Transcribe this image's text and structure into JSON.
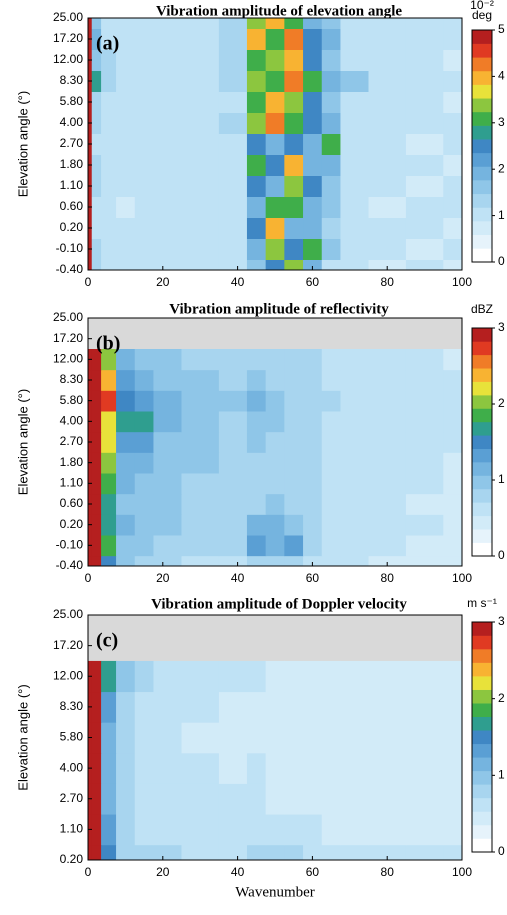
{
  "chart_data": [
    {
      "type": "heatmap",
      "title": "Vibration  amplitude of elevation angle",
      "panel_label": "(a)",
      "ylabel": "Elevation angle (°)",
      "categories": [
        "-0.40",
        "-0.10",
        "0.20",
        "0.60",
        "1.10",
        "1.80",
        "2.70",
        "4.00",
        "5.80",
        "8.30",
        "12.00",
        "17.20",
        "25.00"
      ],
      "x": [
        0,
        2,
        5,
        10,
        15,
        20,
        30,
        40,
        45,
        50,
        55,
        60,
        65,
        70,
        80,
        90,
        100
      ],
      "xlim": [
        0,
        100
      ],
      "xticks": [
        0,
        20,
        40,
        60,
        80,
        100
      ],
      "zlim": [
        0,
        5
      ],
      "zticks": [
        0,
        1,
        2,
        3,
        4,
        5
      ],
      "colorbar_label": [
        "10⁻²",
        "deg"
      ],
      "colorscale": [
        "#ffffff",
        "#e6f3fb",
        "#d2ebf8",
        "#bfe2f5",
        "#a8d5ef",
        "#8fc6e8",
        "#75b4df",
        "#5a9fd4",
        "#3f87c4",
        "#2f9e8f",
        "#3fae4a",
        "#8cc63f",
        "#e8e23a",
        "#f8b332",
        "#f07c27",
        "#e03a22",
        "#b51f1f"
      ],
      "values": [
        [
          5,
          1.2,
          1,
          0.8,
          0.9,
          0.8,
          0.9,
          0.9,
          1.5,
          2.5,
          3.5,
          2,
          1,
          0.8,
          0.7,
          0.8,
          0.7
        ],
        [
          5,
          1.1,
          1,
          0.9,
          0.8,
          0.9,
          0.8,
          1,
          2,
          3.5,
          2.5,
          3,
          1.5,
          0.9,
          0.8,
          0.7,
          0.8
        ],
        [
          5,
          1,
          0.9,
          0.8,
          0.9,
          0.8,
          0.9,
          0.9,
          2.5,
          4,
          2,
          1.8,
          1.2,
          0.8,
          0.8,
          0.8,
          0.7
        ],
        [
          5,
          1,
          0.8,
          0.7,
          0.8,
          0.9,
          0.8,
          0.9,
          2,
          3,
          3,
          2,
          1.5,
          0.8,
          0.7,
          0.8,
          0.8
        ],
        [
          5,
          1.2,
          1,
          0.9,
          0.8,
          0.8,
          0.8,
          1,
          2.5,
          2,
          3.5,
          2.5,
          1.5,
          0.9,
          0.8,
          0.7,
          0.8
        ],
        [
          5,
          1.1,
          1,
          0.8,
          0.9,
          1,
          0.9,
          1,
          3,
          2.5,
          4,
          2,
          2,
          1,
          0.8,
          0.8,
          0.7
        ],
        [
          5,
          1,
          0.9,
          0.8,
          0.9,
          0.8,
          0.9,
          1,
          2.5,
          2,
          2.5,
          2,
          3,
          1,
          0.8,
          0.7,
          0.8
        ],
        [
          5,
          1.2,
          1,
          0.9,
          0.8,
          0.9,
          0.8,
          1.1,
          3.5,
          4.5,
          3,
          2.5,
          2,
          1,
          0.9,
          0.8,
          0.8
        ],
        [
          5,
          1.3,
          1,
          0.9,
          0.9,
          0.8,
          0.9,
          1,
          3,
          4,
          3.5,
          2.5,
          1.5,
          1,
          0.8,
          0.8,
          0.7
        ],
        [
          5,
          2.8,
          1.2,
          1,
          0.9,
          1,
          0.9,
          1.2,
          3.5,
          3,
          4.5,
          3,
          2,
          1.5,
          0.9,
          0.8,
          0.8
        ],
        [
          5,
          1.5,
          1.1,
          1,
          0.9,
          0.9,
          1,
          1.1,
          3,
          3.5,
          4,
          2.5,
          1.5,
          1,
          0.9,
          0.8,
          0.7
        ],
        [
          5,
          1.8,
          1,
          0.9,
          1,
          0.9,
          1,
          1.2,
          4,
          3,
          4.5,
          2.5,
          1.8,
          1,
          0.8,
          0.8,
          0.8
        ],
        [
          5,
          1.5,
          1,
          1,
          0.9,
          1,
          0.9,
          1.1,
          3.5,
          4,
          3,
          2,
          1.5,
          1,
          0.9,
          0.8,
          0.8
        ]
      ]
    },
    {
      "type": "heatmap",
      "title": "Vibration  amplitude of reflectivity",
      "panel_label": "(b)",
      "ylabel": "Elevation angle (°)",
      "categories": [
        "-0.40",
        "-0.10",
        "0.20",
        "0.60",
        "1.10",
        "1.80",
        "2.70",
        "4.00",
        "5.80",
        "8.30",
        "12.00",
        "17.20",
        "25.00"
      ],
      "x": [
        0,
        2,
        5,
        10,
        15,
        20,
        30,
        40,
        45,
        50,
        55,
        60,
        65,
        70,
        80,
        90,
        100
      ],
      "xlim": [
        0,
        100
      ],
      "xticks": [
        0,
        20,
        40,
        60,
        80,
        100
      ],
      "zlim": [
        0,
        3
      ],
      "zticks": [
        0,
        1,
        2,
        3
      ],
      "colorbar_label": [
        "dBZ"
      ],
      "missing_color": "#d9d9d9",
      "colorscale": [
        "#ffffff",
        "#e6f3fb",
        "#d2ebf8",
        "#bfe2f5",
        "#a8d5ef",
        "#8fc6e8",
        "#75b4df",
        "#5a9fd4",
        "#3f87c4",
        "#2f9e8f",
        "#3fae4a",
        "#8cc63f",
        "#e8e23a",
        "#f8b332",
        "#f07c27",
        "#e03a22",
        "#b51f1f"
      ],
      "values": [
        [
          3,
          3,
          1.5,
          0.9,
          0.8,
          0.7,
          0.6,
          0.6,
          0.7,
          0.7,
          0.7,
          0.6,
          0.5,
          0.5,
          0.4,
          0.4,
          0.4
        ],
        [
          3,
          3,
          1.8,
          1,
          0.9,
          0.8,
          0.7,
          0.7,
          1.3,
          1.1,
          1.3,
          0.8,
          0.6,
          0.5,
          0.5,
          0.4,
          0.4
        ],
        [
          3,
          3,
          1.6,
          1.1,
          0.9,
          0.9,
          0.8,
          0.8,
          1.1,
          1.2,
          1,
          0.8,
          0.6,
          0.6,
          0.5,
          0.5,
          0.4
        ],
        [
          3,
          3,
          1.7,
          1,
          1,
          0.9,
          0.8,
          0.7,
          0.8,
          0.9,
          0.8,
          0.7,
          0.6,
          0.5,
          0.5,
          0.4,
          0.4
        ],
        [
          3,
          3,
          1.9,
          1.1,
          1,
          0.9,
          0.8,
          0.7,
          0.8,
          0.8,
          0.7,
          0.7,
          0.6,
          0.6,
          0.5,
          0.5,
          0.4
        ],
        [
          3,
          3,
          2,
          1.2,
          1.1,
          0.9,
          0.9,
          0.8,
          0.8,
          0.8,
          0.7,
          0.7,
          0.6,
          0.5,
          0.5,
          0.5,
          0.4
        ],
        [
          3,
          3,
          2.2,
          1.3,
          1.3,
          1,
          0.9,
          0.8,
          0.9,
          0.8,
          0.8,
          0.7,
          0.6,
          0.6,
          0.5,
          0.5,
          0.5
        ],
        [
          3,
          3,
          2.3,
          1.6,
          1.7,
          1.1,
          0.9,
          0.8,
          0.9,
          0.9,
          0.8,
          0.7,
          0.6,
          0.6,
          0.5,
          0.5,
          0.5
        ],
        [
          3,
          3,
          2.8,
          1.5,
          1.3,
          1.1,
          1,
          0.9,
          1.1,
          0.9,
          0.8,
          0.7,
          0.7,
          0.6,
          0.6,
          0.5,
          0.5
        ],
        [
          3,
          3,
          2.5,
          1.3,
          1.1,
          1,
          0.9,
          0.8,
          0.9,
          0.8,
          0.8,
          0.7,
          0.6,
          0.6,
          0.5,
          0.5,
          0.5
        ],
        [
          3,
          3,
          2,
          1.1,
          1,
          0.9,
          0.8,
          0.8,
          0.8,
          0.8,
          0.7,
          0.7,
          0.6,
          0.5,
          0.5,
          0.5,
          0.4
        ],
        [
          null,
          null,
          null,
          null,
          null,
          null,
          null,
          null,
          null,
          null,
          null,
          null,
          null,
          null,
          null,
          null,
          null
        ],
        [
          null,
          null,
          null,
          null,
          null,
          null,
          null,
          null,
          null,
          null,
          null,
          null,
          null,
          null,
          null,
          null,
          null
        ]
      ]
    },
    {
      "type": "heatmap",
      "title": "Vibration  amplitude of Doppler velocity",
      "panel_label": "(c)",
      "ylabel": "Elevation angle (°)",
      "xlabel": "Wavenumber",
      "categories": [
        "0.20",
        "1.10",
        "2.70",
        "4.00",
        "5.80",
        "8.30",
        "12.00",
        "17.20",
        "25.00"
      ],
      "x": [
        0,
        2,
        5,
        10,
        15,
        20,
        30,
        40,
        45,
        50,
        55,
        60,
        65,
        70,
        80,
        90,
        100
      ],
      "xlim": [
        0,
        100
      ],
      "xticks": [
        0,
        20,
        40,
        60,
        80,
        100
      ],
      "zlim": [
        0,
        3
      ],
      "zticks": [
        0,
        1,
        2,
        3
      ],
      "colorbar_label": [
        "m s⁻¹"
      ],
      "missing_color": "#d9d9d9",
      "colorscale": [
        "#ffffff",
        "#e6f3fb",
        "#d2ebf8",
        "#bfe2f5",
        "#a8d5ef",
        "#8fc6e8",
        "#75b4df",
        "#5a9fd4",
        "#3f87c4",
        "#2f9e8f",
        "#3fae4a",
        "#8cc63f",
        "#e8e23a",
        "#f8b332",
        "#f07c27",
        "#e03a22",
        "#b51f1f"
      ],
      "values": [
        [
          3,
          3,
          1.5,
          0.8,
          0.7,
          0.7,
          0.6,
          0.6,
          0.8,
          0.8,
          0.7,
          0.6,
          0.6,
          0.6,
          0.5,
          0.5,
          0.5
        ],
        [
          3,
          3,
          1.3,
          0.7,
          0.6,
          0.6,
          0.5,
          0.5,
          0.5,
          0.5,
          0.5,
          0.5,
          0.4,
          0.4,
          0.4,
          0.3,
          0.3
        ],
        [
          3,
          3,
          1.2,
          0.7,
          0.6,
          0.5,
          0.5,
          0.5,
          0.5,
          0.4,
          0.4,
          0.4,
          0.4,
          0.3,
          0.3,
          0.3,
          0.3
        ],
        [
          3,
          3,
          1.2,
          0.7,
          0.6,
          0.5,
          0.5,
          0.4,
          0.5,
          0.4,
          0.4,
          0.4,
          0.3,
          0.3,
          0.3,
          0.3,
          0.3
        ],
        [
          3,
          3,
          1.2,
          0.7,
          0.6,
          0.5,
          0.4,
          0.4,
          0.4,
          0.4,
          0.4,
          0.3,
          0.3,
          0.3,
          0.3,
          0.3,
          0.3
        ],
        [
          3,
          3,
          1.3,
          0.8,
          0.6,
          0.5,
          0.5,
          0.4,
          0.4,
          0.4,
          0.4,
          0.4,
          0.3,
          0.3,
          0.3,
          0.3,
          0.3
        ],
        [
          3,
          3,
          1.6,
          0.9,
          0.7,
          0.6,
          0.5,
          0.5,
          0.5,
          0.4,
          0.4,
          0.4,
          0.4,
          0.3,
          0.3,
          0.3,
          0.3
        ],
        [
          null,
          null,
          null,
          null,
          null,
          null,
          null,
          null,
          null,
          null,
          null,
          null,
          null,
          null,
          null,
          null,
          null
        ],
        [
          null,
          null,
          null,
          null,
          null,
          null,
          null,
          null,
          null,
          null,
          null,
          null,
          null,
          null,
          null,
          null,
          null
        ]
      ]
    }
  ]
}
